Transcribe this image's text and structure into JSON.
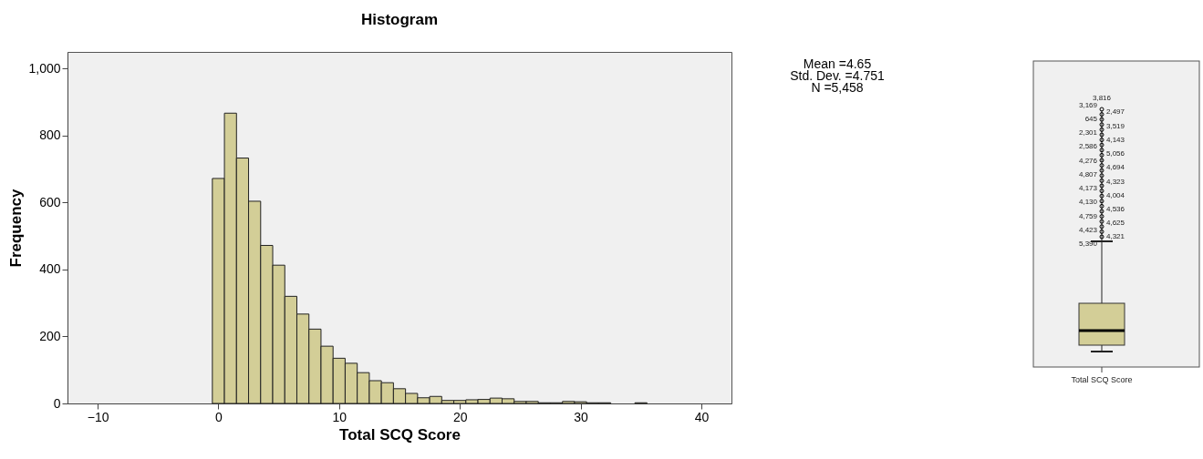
{
  "chart_data": [
    {
      "type": "histogram",
      "title": "Histogram",
      "xlabel": "Total SCQ Score",
      "ylabel": "Frequency",
      "color": "#d3ce97",
      "grid": false,
      "bins": [
        -0.5,
        0.5,
        1.5,
        2.5,
        3.5,
        4.5,
        5.5,
        6.5,
        7.5,
        8.5,
        9.5,
        10.5,
        11.5,
        12.5,
        13.5,
        14.5,
        15.5,
        16.5,
        17.5,
        18.5,
        19.5,
        20.5,
        21.5,
        22.5,
        23.5,
        24.5,
        25.5,
        26.5,
        27.5,
        28.5,
        29.5,
        30.5,
        31.5,
        32.5,
        33.5,
        34.5,
        35.5
      ],
      "values": [
        672,
        867,
        733,
        604,
        472,
        413,
        320,
        267,
        222,
        171,
        135,
        120,
        92,
        68,
        62,
        44,
        30,
        17,
        21,
        9,
        9,
        11,
        12,
        16,
        14,
        6,
        6,
        2,
        2,
        6,
        5,
        2,
        2,
        0,
        0,
        2
      ],
      "xlim": [
        -12.5,
        42.5
      ],
      "xticks": [
        -10,
        0,
        10,
        20,
        30,
        40
      ],
      "ylim": [
        0,
        1050
      ],
      "yticks": [
        0,
        200,
        400,
        600,
        800,
        {
          "value": 1000,
          "label": "1,000"
        }
      ],
      "annotations": [
        "Mean =4.65",
        "Std. Dev. =4.751",
        "N =5,458"
      ]
    },
    {
      "type": "other",
      "xlabel": "Total SCQ Score",
      "annotations": [
        "3,816",
        "3,169",
        "2,497",
        "645",
        "3,519",
        "2,301",
        "4,143",
        "2,586",
        "5,056",
        "4,276",
        "4,694",
        "4,807",
        "4,323",
        "4,173",
        "4,004",
        "4,130",
        "4,536",
        "4,759",
        "4,625",
        "4,423",
        "4,321",
        "5,390"
      ]
    }
  ]
}
